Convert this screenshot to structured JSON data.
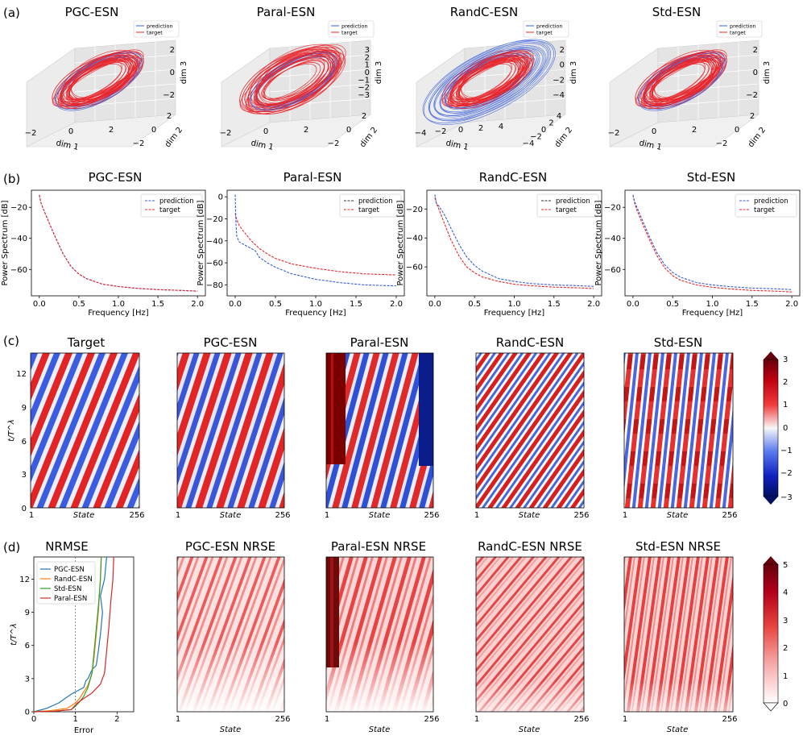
{
  "panels": {
    "a": "(a)",
    "b": "(b)",
    "c": "(c)",
    "d": "(d)"
  },
  "row_a": {
    "titles": [
      "PGC-ESN",
      "Paral-ESN",
      "RandC-ESN",
      "Std-ESN"
    ],
    "legend": [
      "prediction",
      "target"
    ],
    "axis_labels": {
      "x": "dim 1",
      "y": "dim 2",
      "z": "dim 3"
    },
    "z_ticks": [
      [
        "2",
        "0",
        "−2"
      ],
      [
        "3",
        "2",
        "1",
        "0",
        "−1",
        "−2",
        "−3"
      ],
      [
        "2",
        "0",
        "−2",
        "−4"
      ],
      [
        "2",
        "0",
        "−2"
      ]
    ],
    "x_ticks": [
      [
        "−2",
        "0",
        "2"
      ],
      [
        "−2",
        "0",
        "2"
      ],
      [
        "−4",
        "−2",
        "0",
        "2",
        "4"
      ],
      [
        "−2",
        "0",
        "2"
      ]
    ],
    "y_ticks": [
      [
        "−2",
        "0",
        "2"
      ],
      [
        "−2",
        "0",
        "2"
      ],
      [
        "−4",
        "−2",
        "0",
        "2",
        "4"
      ],
      [
        "−2",
        "0",
        "2"
      ]
    ]
  },
  "row_c": {
    "titles": [
      "Target",
      "PGC-ESN",
      "Paral-ESN",
      "RandC-ESN",
      "Std-ESN"
    ],
    "xlabel": "State",
    "ylabel": "t/T^λ",
    "x_ticks": [
      "1",
      "256"
    ],
    "y_ticks": [
      "0",
      "3",
      "6",
      "9",
      "12"
    ],
    "colorbar_ticks": [
      "3",
      "2",
      "1",
      "0",
      "−1",
      "−2",
      "−3"
    ]
  },
  "row_d": {
    "titles": [
      "NRMSE",
      "PGC-ESN NRSE",
      "Paral-ESN NRSE",
      "RandC-ESN NRSE",
      "Std-ESN NRSE"
    ],
    "xlabel_state": "State",
    "xlabel_error": "Error",
    "ylabel": "t/T^λ",
    "x_ticks_state": [
      "1",
      "256"
    ],
    "x_ticks_error": [
      "0",
      "1",
      "2"
    ],
    "y_ticks": [
      "0",
      "3",
      "6",
      "9",
      "12"
    ],
    "legend": [
      "PGC-ESN",
      "RandC-ESN",
      "Std-ESN",
      "Paral-ESN"
    ],
    "legend_colors": [
      "#1f77b4",
      "#ff7f0e",
      "#2ca02c",
      "#d62728"
    ],
    "colorbar_ticks": [
      "5",
      "4",
      "3",
      "2",
      "1",
      "0"
    ]
  },
  "chart_data": [
    {
      "type": "line",
      "title": "PGC-ESN",
      "xlabel": "Frequency [Hz]",
      "ylabel": "Power Spectrum [dB]",
      "xlim": [
        -0.1,
        2.1
      ],
      "ylim": [
        -77,
        -9
      ],
      "x_ticks": [
        0.0,
        0.5,
        1.0,
        1.5,
        2.0
      ],
      "y_ticks": [
        -20,
        -40,
        -60
      ],
      "legend": [
        "prediction",
        "target"
      ],
      "series": [
        {
          "name": "prediction",
          "color": "#3a5fd9",
          "x": [
            0.0,
            0.02,
            0.05,
            0.1,
            0.15,
            0.2,
            0.3,
            0.4,
            0.5,
            0.6,
            0.8,
            1.0,
            1.2,
            1.5,
            1.8,
            2.0
          ],
          "y": [
            -12,
            -17,
            -21,
            -27,
            -33,
            -39,
            -50,
            -58,
            -63,
            -66,
            -69.5,
            -71,
            -72,
            -73,
            -73.5,
            -74
          ]
        },
        {
          "name": "target",
          "color": "#e8252b",
          "x": [
            0.0,
            0.02,
            0.05,
            0.1,
            0.15,
            0.2,
            0.3,
            0.4,
            0.5,
            0.6,
            0.8,
            1.0,
            1.2,
            1.5,
            1.8,
            2.0
          ],
          "y": [
            -12,
            -17,
            -21,
            -27,
            -33,
            -39,
            -50,
            -58,
            -63,
            -66,
            -69.5,
            -71,
            -72,
            -73,
            -73.5,
            -74
          ]
        }
      ]
    },
    {
      "type": "line",
      "title": "Paral-ESN",
      "xlabel": "Frequency [Hz]",
      "ylabel": "Power Spectrum [dB]",
      "xlim": [
        -0.1,
        2.1
      ],
      "ylim": [
        -90,
        6
      ],
      "x_ticks": [
        0.0,
        0.5,
        1.0,
        1.5,
        2.0
      ],
      "y_ticks": [
        0,
        -20,
        -40,
        -60,
        -80
      ],
      "legend": [
        "prediction",
        "target"
      ],
      "series": [
        {
          "name": "prediction",
          "color": "#3a5fd9",
          "x": [
            0.0,
            0.01,
            0.02,
            0.05,
            0.1,
            0.15,
            0.2,
            0.25,
            0.3,
            0.4,
            0.5,
            0.7,
            1.0,
            1.3,
            1.6,
            2.0
          ],
          "y": [
            2,
            -25,
            -36,
            -41,
            -43,
            -45,
            -47,
            -49,
            -55,
            -60,
            -64,
            -70,
            -75,
            -78,
            -80,
            -81
          ]
        },
        {
          "name": "target",
          "color": "#e8252b",
          "x": [
            0.0,
            0.02,
            0.05,
            0.1,
            0.2,
            0.3,
            0.4,
            0.5,
            0.7,
            1.0,
            1.3,
            1.6,
            2.0
          ],
          "y": [
            -15,
            -21,
            -26,
            -31,
            -40,
            -47,
            -52,
            -56,
            -61,
            -65,
            -68,
            -70,
            -71
          ]
        }
      ]
    },
    {
      "type": "line",
      "title": "RandC-ESN",
      "xlabel": "Frequency [Hz]",
      "ylabel": "Power Spectrum [dB]",
      "xlim": [
        -0.1,
        2.1
      ],
      "ylim": [
        -80,
        -7
      ],
      "x_ticks": [
        0.0,
        0.5,
        1.0,
        1.5,
        2.0
      ],
      "y_ticks": [
        -20,
        -40,
        -60
      ],
      "legend": [
        "prediction",
        "target"
      ],
      "series": [
        {
          "name": "prediction",
          "color": "#3a5fd9",
          "x": [
            0.0,
            0.02,
            0.05,
            0.1,
            0.15,
            0.2,
            0.3,
            0.4,
            0.5,
            0.6,
            0.8,
            1.0,
            1.2,
            1.5,
            1.8,
            2.0
          ],
          "y": [
            -10,
            -16,
            -18,
            -22,
            -27,
            -33,
            -44,
            -53,
            -59,
            -63,
            -68,
            -70,
            -71.5,
            -72.5,
            -73,
            -73.5
          ]
        },
        {
          "name": "target",
          "color": "#e8252b",
          "x": [
            0.0,
            0.02,
            0.05,
            0.1,
            0.15,
            0.2,
            0.3,
            0.4,
            0.5,
            0.6,
            0.8,
            1.0,
            1.2,
            1.5,
            1.8,
            2.0
          ],
          "y": [
            -12,
            -16,
            -20,
            -27,
            -34,
            -41,
            -52,
            -60,
            -64,
            -67,
            -70,
            -72,
            -73,
            -74,
            -74.5,
            -75
          ]
        }
      ]
    },
    {
      "type": "line",
      "title": "Std-ESN",
      "xlabel": "Frequency [Hz]",
      "ylabel": "Power Spectrum [dB]",
      "xlim": [
        -0.1,
        2.1
      ],
      "ylim": [
        -77,
        -9
      ],
      "x_ticks": [
        0.0,
        0.5,
        1.0,
        1.5,
        2.0
      ],
      "y_ticks": [
        -20,
        -40,
        -60
      ],
      "legend": [
        "prediction",
        "target"
      ],
      "series": [
        {
          "name": "prediction",
          "color": "#3a5fd9",
          "x": [
            0.0,
            0.02,
            0.05,
            0.1,
            0.15,
            0.2,
            0.3,
            0.4,
            0.5,
            0.6,
            0.8,
            1.0,
            1.2,
            1.5,
            1.8,
            2.0
          ],
          "y": [
            -12,
            -16,
            -20,
            -26,
            -32,
            -38,
            -49,
            -57,
            -62,
            -65,
            -68.5,
            -70,
            -71,
            -72,
            -72.5,
            -73
          ]
        },
        {
          "name": "target",
          "color": "#e8252b",
          "x": [
            0.0,
            0.02,
            0.05,
            0.1,
            0.15,
            0.2,
            0.3,
            0.4,
            0.5,
            0.6,
            0.8,
            1.0,
            1.2,
            1.5,
            1.8,
            2.0
          ],
          "y": [
            -12,
            -17,
            -22,
            -28,
            -34,
            -40,
            -51,
            -59,
            -64,
            -67,
            -70,
            -71.5,
            -72.5,
            -73.5,
            -74,
            -74.5
          ]
        }
      ]
    },
    {
      "type": "line",
      "title": "NRMSE",
      "xlabel": "Error",
      "ylabel": "t/T^λ",
      "xlim": [
        0,
        2.4
      ],
      "ylim": [
        0,
        14
      ],
      "x_ticks": [
        0,
        1,
        2
      ],
      "y_ticks": [
        0,
        3,
        6,
        9,
        12
      ],
      "series": [
        {
          "name": "PGC-ESN",
          "color": "#1f77b4",
          "x": [
            0,
            0.3,
            0.6,
            0.9,
            1.1,
            1.2,
            1.25,
            1.3,
            1.4,
            1.5,
            1.55,
            1.6,
            1.65,
            1.6,
            1.7,
            1.75
          ],
          "y": [
            0,
            0.3,
            0.8,
            1.6,
            2.0,
            2.2,
            2.8,
            3.0,
            3.8,
            4.2,
            5.5,
            7.0,
            9.0,
            10.5,
            12.0,
            14.0
          ]
        },
        {
          "name": "RandC-ESN",
          "color": "#ff7f0e",
          "x": [
            0,
            0.4,
            0.8,
            1.0,
            1.1,
            1.2,
            1.3,
            1.4,
            1.45,
            1.5,
            1.55,
            1.6,
            1.62
          ],
          "y": [
            0,
            0.1,
            0.3,
            0.8,
            1.2,
            1.8,
            2.4,
            3.5,
            5.0,
            7.0,
            9.0,
            12.0,
            14.0
          ]
        },
        {
          "name": "Std-ESN",
          "color": "#2ca02c",
          "x": [
            0,
            0.5,
            0.9,
            1.0,
            1.1,
            1.2,
            1.3,
            1.4,
            1.45,
            1.5,
            1.55,
            1.6,
            1.62
          ],
          "y": [
            0,
            0.05,
            0.2,
            0.5,
            0.9,
            1.4,
            2.2,
            3.5,
            5.5,
            7.5,
            9.5,
            12.0,
            14.0
          ]
        },
        {
          "name": "Paral-ESN",
          "color": "#d62728",
          "x": [
            0,
            0.5,
            0.9,
            1.05,
            1.2,
            1.4,
            1.6,
            1.7,
            1.75,
            1.8,
            1.85,
            1.9,
            1.92
          ],
          "y": [
            0,
            0.05,
            0.2,
            0.8,
            1.2,
            1.7,
            2.5,
            3.5,
            5.5,
            7.5,
            10.0,
            12.0,
            14.0
          ]
        }
      ]
    }
  ]
}
